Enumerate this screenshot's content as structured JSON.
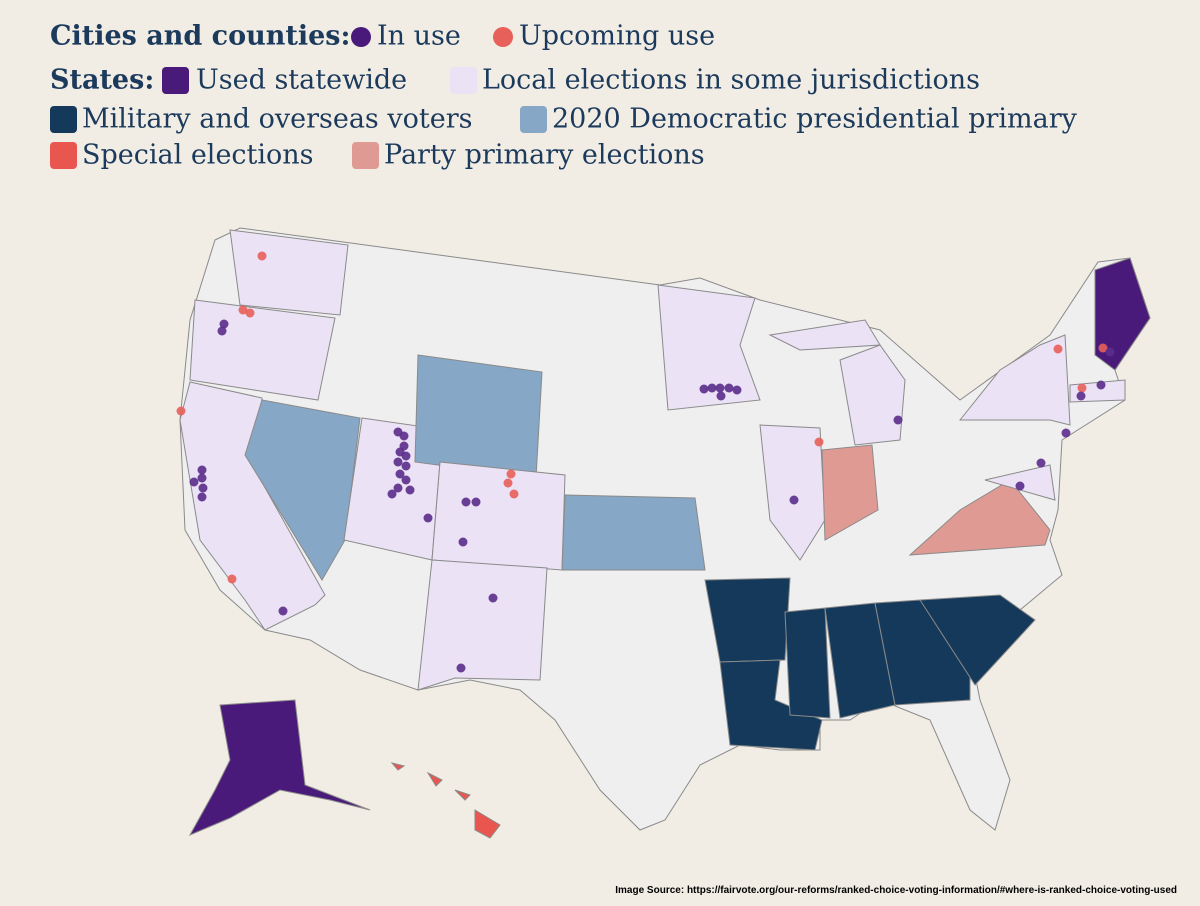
{
  "legend": {
    "cities": {
      "title": "Cities and counties:",
      "items": [
        "In use",
        "Upcoming use"
      ]
    },
    "states": {
      "title": "States:",
      "items": [
        "Used statewide",
        "Local elections in some jurisdictions",
        "Military and overseas voters",
        "2020 Democratic presidential primary",
        "Special elections",
        "Party primary elections"
      ]
    }
  },
  "source": "Image Source:  https://fairvote.org/our-reforms/ranked-choice-voting-information/#where-is-ranked-choice-voting-used"
}
